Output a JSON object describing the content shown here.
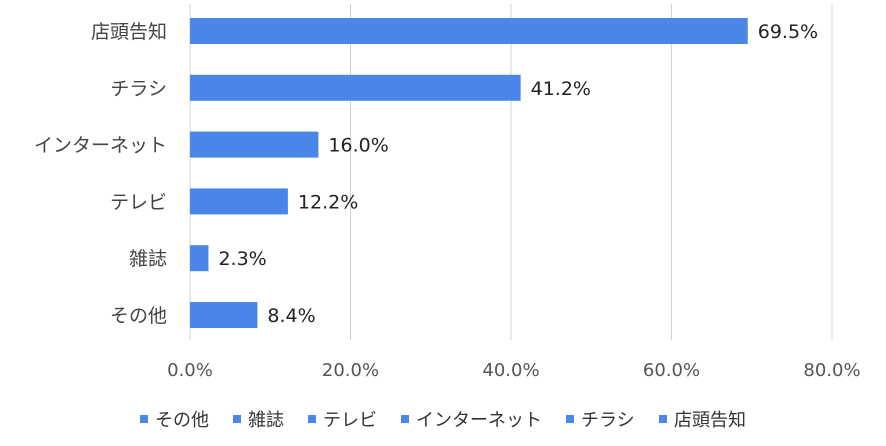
{
  "chart_data": {
    "type": "bar",
    "orientation": "horizontal",
    "categories": [
      "店頭告知",
      "チラシ",
      "インターネット",
      "テレビ",
      "雑誌",
      "その他"
    ],
    "values": [
      69.5,
      41.2,
      16.0,
      12.2,
      2.3,
      8.4
    ],
    "data_labels": [
      "69.5%",
      "41.2%",
      "16.0%",
      "12.2%",
      "2.3%",
      "8.4%"
    ],
    "xlim": [
      0,
      80
    ],
    "x_ticks": [
      0,
      20,
      40,
      60,
      80
    ],
    "x_tick_labels": [
      "0.0%",
      "20.0%",
      "40.0%",
      "60.0%",
      "80.0%"
    ],
    "grid": "vertical",
    "legend_position": "bottom",
    "legend_entries": [
      "その他",
      "雑誌",
      "テレビ",
      "インターネット",
      "チラシ",
      "店頭告知"
    ],
    "bar_color": "#4a86e8",
    "grid_color": "#d0d0d0"
  }
}
